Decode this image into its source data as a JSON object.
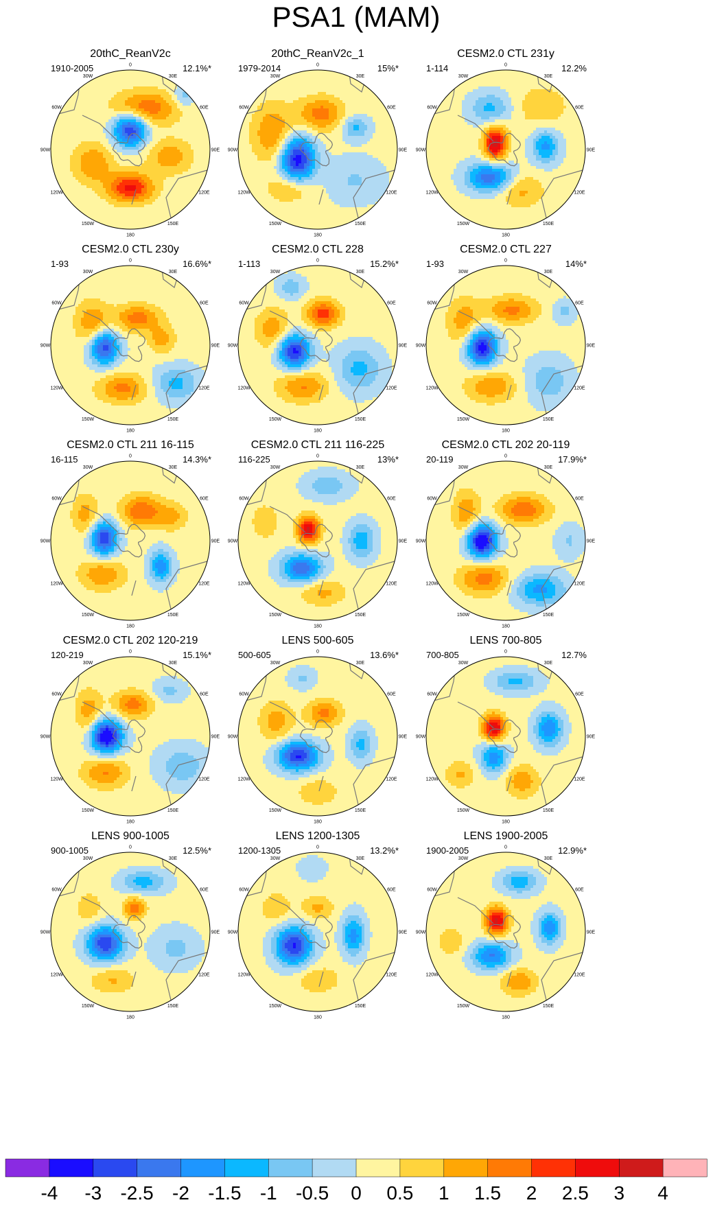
{
  "figure": {
    "title": "PSA1 (MAM)"
  },
  "longitude_labels": [
    "0",
    "30E",
    "60E",
    "90E",
    "120E",
    "150E",
    "180",
    "150W",
    "120W",
    "90W",
    "60W",
    "30W"
  ],
  "colors": {
    "levels": [
      "#8a2be2",
      "#1a0dff",
      "#2a49f0",
      "#3a78ee",
      "#1e96ff",
      "#0bb8ff",
      "#79c7f3",
      "#b1daf3",
      "#fff5a0",
      "#ffd43d",
      "#ffa705",
      "#ff7a05",
      "#ff3105",
      "#ef0c0c",
      "#cf1b1b",
      "#ffb3b8"
    ],
    "coast": "#777777"
  },
  "chart_data": {
    "type": "heatmap",
    "description_variable": "PSA1 pattern, MAM, polar stereographic (Southern Hemisphere)",
    "colorbar": {
      "ticks": [
        "-4",
        "-3",
        "-2.5",
        "-2",
        "-1.5",
        "-1",
        "-0.5",
        "0",
        "0.5",
        "1",
        "1.5",
        "2",
        "2.5",
        "3",
        "4"
      ],
      "levels": [
        -4,
        -3,
        -2.5,
        -2,
        -1.5,
        -1,
        -0.5,
        0,
        0.5,
        1,
        1.5,
        2,
        2.5,
        3,
        4
      ]
    },
    "panels": [
      {
        "title": "20thC_ReanV2c",
        "period": "1910-2005",
        "variance": "12.1%*",
        "anomalies": [
          {
            "lon": 0,
            "r": 0.25,
            "sx": 0.15,
            "sy": 0.15,
            "v": -3.2
          },
          {
            "lon": 180,
            "r": 0.48,
            "sx": 0.2,
            "sy": 0.13,
            "v": 2.5
          },
          {
            "lon": 20,
            "r": 0.55,
            "sx": 0.28,
            "sy": 0.15,
            "v": 1.8
          },
          {
            "lon": 250,
            "r": 0.5,
            "sx": 0.18,
            "sy": 0.18,
            "v": 1.3
          },
          {
            "lon": 100,
            "r": 0.5,
            "sx": 0.2,
            "sy": 0.15,
            "v": 1.2
          },
          {
            "lon": 45,
            "r": 0.95,
            "sx": 0.1,
            "sy": 0.1,
            "v": -0.9
          }
        ]
      },
      {
        "title": "20thC_ReanV2c_1",
        "period": "1979-2014",
        "variance": "15%*",
        "anomalies": [
          {
            "lon": 245,
            "r": 0.28,
            "sx": 0.15,
            "sy": 0.2,
            "v": -3.5
          },
          {
            "lon": 5,
            "r": 0.45,
            "sx": 0.2,
            "sy": 0.15,
            "v": 1.6
          },
          {
            "lon": 60,
            "r": 0.55,
            "sx": 0.12,
            "sy": 0.1,
            "v": -1.3
          },
          {
            "lon": 290,
            "r": 0.6,
            "sx": 0.18,
            "sy": 0.25,
            "v": 1.4
          },
          {
            "lon": 130,
            "r": 0.6,
            "sx": 0.25,
            "sy": 0.2,
            "v": -0.7
          },
          {
            "lon": 215,
            "r": 0.6,
            "sx": 0.2,
            "sy": 0.12,
            "v": 1.0
          }
        ]
      },
      {
        "title": "CESM2.0 CTL 231y",
        "period": "1-114",
        "variance": "12.2%",
        "anomalies": [
          {
            "lon": 300,
            "r": 0.15,
            "sx": 0.1,
            "sy": 0.15,
            "v": 3.1
          },
          {
            "lon": 210,
            "r": 0.4,
            "sx": 0.2,
            "sy": 0.13,
            "v": -2.5
          },
          {
            "lon": 85,
            "r": 0.5,
            "sx": 0.12,
            "sy": 0.15,
            "v": -1.8
          },
          {
            "lon": 340,
            "r": 0.55,
            "sx": 0.18,
            "sy": 0.14,
            "v": -1.3
          },
          {
            "lon": 160,
            "r": 0.55,
            "sx": 0.2,
            "sy": 0.15,
            "v": 1.0
          },
          {
            "lon": 40,
            "r": 0.7,
            "sx": 0.25,
            "sy": 0.2,
            "v": 0.7
          }
        ]
      },
      {
        "title": "CESM2.0 CTL 230y",
        "period": "1-93",
        "variance": "16.6%*",
        "anomalies": [
          {
            "lon": 265,
            "r": 0.33,
            "sx": 0.13,
            "sy": 0.15,
            "v": -3.0
          },
          {
            "lon": 15,
            "r": 0.35,
            "sx": 0.2,
            "sy": 0.12,
            "v": 1.6
          },
          {
            "lon": 190,
            "r": 0.55,
            "sx": 0.22,
            "sy": 0.13,
            "v": 1.5
          },
          {
            "lon": 300,
            "r": 0.55,
            "sx": 0.15,
            "sy": 0.2,
            "v": 1.3
          },
          {
            "lon": 130,
            "r": 0.75,
            "sx": 0.2,
            "sy": 0.15,
            "v": -1.3
          },
          {
            "lon": 80,
            "r": 0.4,
            "sx": 0.12,
            "sy": 0.12,
            "v": 1.1
          }
        ]
      },
      {
        "title": "CESM2.0 CTL 228",
        "period": "1-113",
        "variance": "15.2%*",
        "anomalies": [
          {
            "lon": 255,
            "r": 0.3,
            "sx": 0.14,
            "sy": 0.15,
            "v": -3.3
          },
          {
            "lon": 10,
            "r": 0.4,
            "sx": 0.15,
            "sy": 0.12,
            "v": 2.1
          },
          {
            "lon": 200,
            "r": 0.55,
            "sx": 0.22,
            "sy": 0.14,
            "v": 1.4
          },
          {
            "lon": 120,
            "r": 0.6,
            "sx": 0.2,
            "sy": 0.2,
            "v": -1.3
          },
          {
            "lon": 335,
            "r": 0.8,
            "sx": 0.12,
            "sy": 0.1,
            "v": -1.0
          },
          {
            "lon": 290,
            "r": 0.6,
            "sx": 0.15,
            "sy": 0.18,
            "v": 1.2
          }
        ]
      },
      {
        "title": "CESM2.0 CTL 227",
        "period": "1-93",
        "variance": "14%*",
        "anomalies": [
          {
            "lon": 265,
            "r": 0.3,
            "sx": 0.13,
            "sy": 0.16,
            "v": -3.5
          },
          {
            "lon": 10,
            "r": 0.45,
            "sx": 0.22,
            "sy": 0.12,
            "v": 1.5
          },
          {
            "lon": 200,
            "r": 0.55,
            "sx": 0.22,
            "sy": 0.14,
            "v": 1.3
          },
          {
            "lon": 300,
            "r": 0.6,
            "sx": 0.15,
            "sy": 0.2,
            "v": 1.2
          },
          {
            "lon": 130,
            "r": 0.7,
            "sx": 0.2,
            "sy": 0.2,
            "v": -1.0
          },
          {
            "lon": 60,
            "r": 0.85,
            "sx": 0.1,
            "sy": 0.1,
            "v": -0.8
          }
        ]
      },
      {
        "title": "CESM2.0 CTL 211 16-115",
        "period": "16-115",
        "variance": "14.3%*",
        "anomalies": [
          {
            "lon": 275,
            "r": 0.33,
            "sx": 0.12,
            "sy": 0.15,
            "v": -3.1
          },
          {
            "lon": 20,
            "r": 0.4,
            "sx": 0.18,
            "sy": 0.14,
            "v": 1.8
          },
          {
            "lon": 220,
            "r": 0.55,
            "sx": 0.2,
            "sy": 0.14,
            "v": 1.3
          },
          {
            "lon": 130,
            "r": 0.5,
            "sx": 0.1,
            "sy": 0.14,
            "v": -2.0
          },
          {
            "lon": 60,
            "r": 0.6,
            "sx": 0.14,
            "sy": 0.12,
            "v": 1.0
          },
          {
            "lon": 300,
            "r": 0.65,
            "sx": 0.12,
            "sy": 0.18,
            "v": 1.1
          }
        ]
      },
      {
        "title": "CESM2.0 CTL 211 116-225",
        "period": "116-225",
        "variance": "13%*",
        "anomalies": [
          {
            "lon": 320,
            "r": 0.18,
            "sx": 0.1,
            "sy": 0.12,
            "v": 2.9
          },
          {
            "lon": 210,
            "r": 0.4,
            "sx": 0.18,
            "sy": 0.13,
            "v": -2.5
          },
          {
            "lon": 90,
            "r": 0.55,
            "sx": 0.12,
            "sy": 0.16,
            "v": -1.5
          },
          {
            "lon": 10,
            "r": 0.7,
            "sx": 0.2,
            "sy": 0.12,
            "v": -1.0
          },
          {
            "lon": 175,
            "r": 0.65,
            "sx": 0.2,
            "sy": 0.12,
            "v": 1.0
          },
          {
            "lon": 290,
            "r": 0.7,
            "sx": 0.12,
            "sy": 0.15,
            "v": 0.8
          }
        ]
      },
      {
        "title": "CESM2.0 CTL 202 20-119",
        "period": "20-119",
        "variance": "17.9%*",
        "anomalies": [
          {
            "lon": 270,
            "r": 0.3,
            "sx": 0.13,
            "sy": 0.15,
            "v": -3.9
          },
          {
            "lon": 30,
            "r": 0.45,
            "sx": 0.22,
            "sy": 0.13,
            "v": 1.7
          },
          {
            "lon": 210,
            "r": 0.55,
            "sx": 0.22,
            "sy": 0.14,
            "v": 1.6
          },
          {
            "lon": 145,
            "r": 0.75,
            "sx": 0.22,
            "sy": 0.14,
            "v": -1.8
          },
          {
            "lon": 305,
            "r": 0.6,
            "sx": 0.12,
            "sy": 0.2,
            "v": 1.3
          },
          {
            "lon": 90,
            "r": 0.8,
            "sx": 0.12,
            "sy": 0.15,
            "v": -0.7
          }
        ]
      },
      {
        "title": "CESM2.0 CTL 202 120-219",
        "period": "120-219",
        "variance": "15.1%*",
        "anomalies": [
          {
            "lon": 270,
            "r": 0.3,
            "sx": 0.14,
            "sy": 0.15,
            "v": -3.9
          },
          {
            "lon": 5,
            "r": 0.4,
            "sx": 0.17,
            "sy": 0.12,
            "v": 1.6
          },
          {
            "lon": 215,
            "r": 0.55,
            "sx": 0.2,
            "sy": 0.14,
            "v": 1.4
          },
          {
            "lon": 300,
            "r": 0.6,
            "sx": 0.12,
            "sy": 0.2,
            "v": 1.2
          },
          {
            "lon": 120,
            "r": 0.75,
            "sx": 0.22,
            "sy": 0.18,
            "v": -1.0
          },
          {
            "lon": 40,
            "r": 0.75,
            "sx": 0.15,
            "sy": 0.1,
            "v": -0.8
          }
        ]
      },
      {
        "title": "LENS 500-605",
        "period": "500-605",
        "variance": "13.6%*",
        "anomalies": [
          {
            "lon": 225,
            "r": 0.35,
            "sx": 0.18,
            "sy": 0.13,
            "v": -3.2
          },
          {
            "lon": 15,
            "r": 0.3,
            "sx": 0.15,
            "sy": 0.12,
            "v": 1.5
          },
          {
            "lon": 100,
            "r": 0.55,
            "sx": 0.1,
            "sy": 0.15,
            "v": -1.3
          },
          {
            "lon": 290,
            "r": 0.55,
            "sx": 0.15,
            "sy": 0.18,
            "v": 1.1
          },
          {
            "lon": 180,
            "r": 0.7,
            "sx": 0.18,
            "sy": 0.12,
            "v": 0.8
          },
          {
            "lon": 345,
            "r": 0.75,
            "sx": 0.12,
            "sy": 0.1,
            "v": -0.7
          }
        ]
      },
      {
        "title": "LENS 700-805",
        "period": "700-805",
        "variance": "12.7%",
        "anomalies": [
          {
            "lon": 305,
            "r": 0.18,
            "sx": 0.1,
            "sy": 0.12,
            "v": 3.0
          },
          {
            "lon": 210,
            "r": 0.3,
            "sx": 0.12,
            "sy": 0.14,
            "v": -2.0
          },
          {
            "lon": 80,
            "r": 0.55,
            "sx": 0.12,
            "sy": 0.15,
            "v": -2.1
          },
          {
            "lon": 10,
            "r": 0.7,
            "sx": 0.2,
            "sy": 0.1,
            "v": -1.3
          },
          {
            "lon": 160,
            "r": 0.6,
            "sx": 0.15,
            "sy": 0.14,
            "v": 1.2
          },
          {
            "lon": 230,
            "r": 0.75,
            "sx": 0.14,
            "sy": 0.12,
            "v": 0.9
          }
        ]
      },
      {
        "title": "LENS 900-1005",
        "period": "900-1005",
        "variance": "12.5%*",
        "anomalies": [
          {
            "lon": 245,
            "r": 0.35,
            "sx": 0.16,
            "sy": 0.15,
            "v": -3.1
          },
          {
            "lon": 10,
            "r": 0.3,
            "sx": 0.1,
            "sy": 0.1,
            "v": 1.6
          },
          {
            "lon": 15,
            "r": 0.65,
            "sx": 0.2,
            "sy": 0.1,
            "v": -1.4
          },
          {
            "lon": 110,
            "r": 0.6,
            "sx": 0.2,
            "sy": 0.18,
            "v": -0.8
          },
          {
            "lon": 200,
            "r": 0.65,
            "sx": 0.2,
            "sy": 0.12,
            "v": 0.9
          },
          {
            "lon": 300,
            "r": 0.6,
            "sx": 0.12,
            "sy": 0.15,
            "v": 0.7
          }
        ]
      },
      {
        "title": "LENS 1200-1305",
        "period": "1200-1305",
        "variance": "13.2%*",
        "anomalies": [
          {
            "lon": 240,
            "r": 0.35,
            "sx": 0.16,
            "sy": 0.17,
            "v": -3.2
          },
          {
            "lon": 95,
            "r": 0.45,
            "sx": 0.1,
            "sy": 0.18,
            "v": -1.9
          },
          {
            "lon": 0,
            "r": 0.3,
            "sx": 0.14,
            "sy": 0.1,
            "v": 1.0
          },
          {
            "lon": 180,
            "r": 0.6,
            "sx": 0.2,
            "sy": 0.12,
            "v": 0.8
          },
          {
            "lon": 300,
            "r": 0.6,
            "sx": 0.15,
            "sy": 0.15,
            "v": 0.7
          },
          {
            "lon": 355,
            "r": 0.8,
            "sx": 0.12,
            "sy": 0.1,
            "v": -0.6
          }
        ]
      },
      {
        "title": "LENS 1900-2005",
        "period": "1900-2005",
        "variance": "12.9%*",
        "anomalies": [
          {
            "lon": 320,
            "r": 0.18,
            "sx": 0.1,
            "sy": 0.12,
            "v": 3.0
          },
          {
            "lon": 210,
            "r": 0.35,
            "sx": 0.17,
            "sy": 0.12,
            "v": -2.2
          },
          {
            "lon": 85,
            "r": 0.55,
            "sx": 0.1,
            "sy": 0.14,
            "v": -2.0
          },
          {
            "lon": 15,
            "r": 0.65,
            "sx": 0.16,
            "sy": 0.1,
            "v": -1.5
          },
          {
            "lon": 165,
            "r": 0.65,
            "sx": 0.15,
            "sy": 0.12,
            "v": 1.3
          },
          {
            "lon": 260,
            "r": 0.7,
            "sx": 0.12,
            "sy": 0.12,
            "v": 0.8
          }
        ]
      }
    ]
  }
}
